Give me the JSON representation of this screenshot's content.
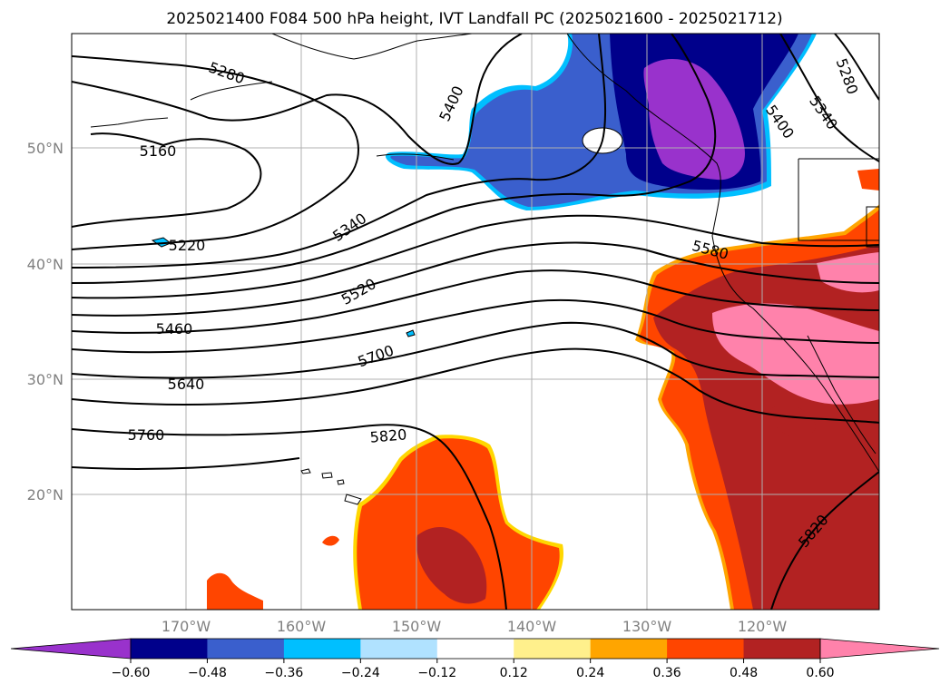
{
  "title": "2025021400 F084 500 hPa height, IVT Landfall PC (2025021600 - 2025021712)",
  "lon_ticks": [
    "170°W",
    "160°W",
    "150°W",
    "140°W",
    "130°W",
    "120°W"
  ],
  "lat_ticks": [
    "20°N",
    "30°N",
    "40°N",
    "50°N"
  ],
  "height_contours": [
    {
      "label": "5160"
    },
    {
      "label": "5220"
    },
    {
      "label": "5280"
    },
    {
      "label": "5340"
    },
    {
      "label": "5400"
    },
    {
      "label": "5460"
    },
    {
      "label": "5520"
    },
    {
      "label": "5580"
    },
    {
      "label": "5640"
    },
    {
      "label": "5700"
    },
    {
      "label": "5760"
    },
    {
      "label": "5820"
    }
  ],
  "colorbar": {
    "tick_labels": [
      "−0.60",
      "−0.48",
      "−0.36",
      "−0.24",
      "−0.12",
      "0.12",
      "0.24",
      "0.36",
      "0.48",
      "0.60"
    ],
    "colors": [
      "#9932cc",
      "#00008b",
      "#3a5fcd",
      "#00bfff",
      "#b0e2ff",
      "#ffffff",
      "#fff08c",
      "#ffa500",
      "#ff4500",
      "#b22222",
      "#ff82ab"
    ]
  },
  "chart_data": {
    "type": "heatmap",
    "title": "2025021400 F084 500 hPa height, IVT Landfall PC (2025021600 - 2025021712)",
    "lon_range": [
      "180°W",
      "110°W"
    ],
    "lat_range": [
      "10°N",
      "60°N"
    ],
    "contour_levels": [
      5160,
      5220,
      5280,
      5340,
      5400,
      5460,
      5520,
      5580,
      5640,
      5700,
      5760,
      5820
    ],
    "colorbar_levels": [
      -0.6,
      -0.48,
      -0.36,
      -0.24,
      -0.12,
      0.12,
      0.24,
      0.36,
      0.48,
      0.6
    ],
    "grid": true
  }
}
